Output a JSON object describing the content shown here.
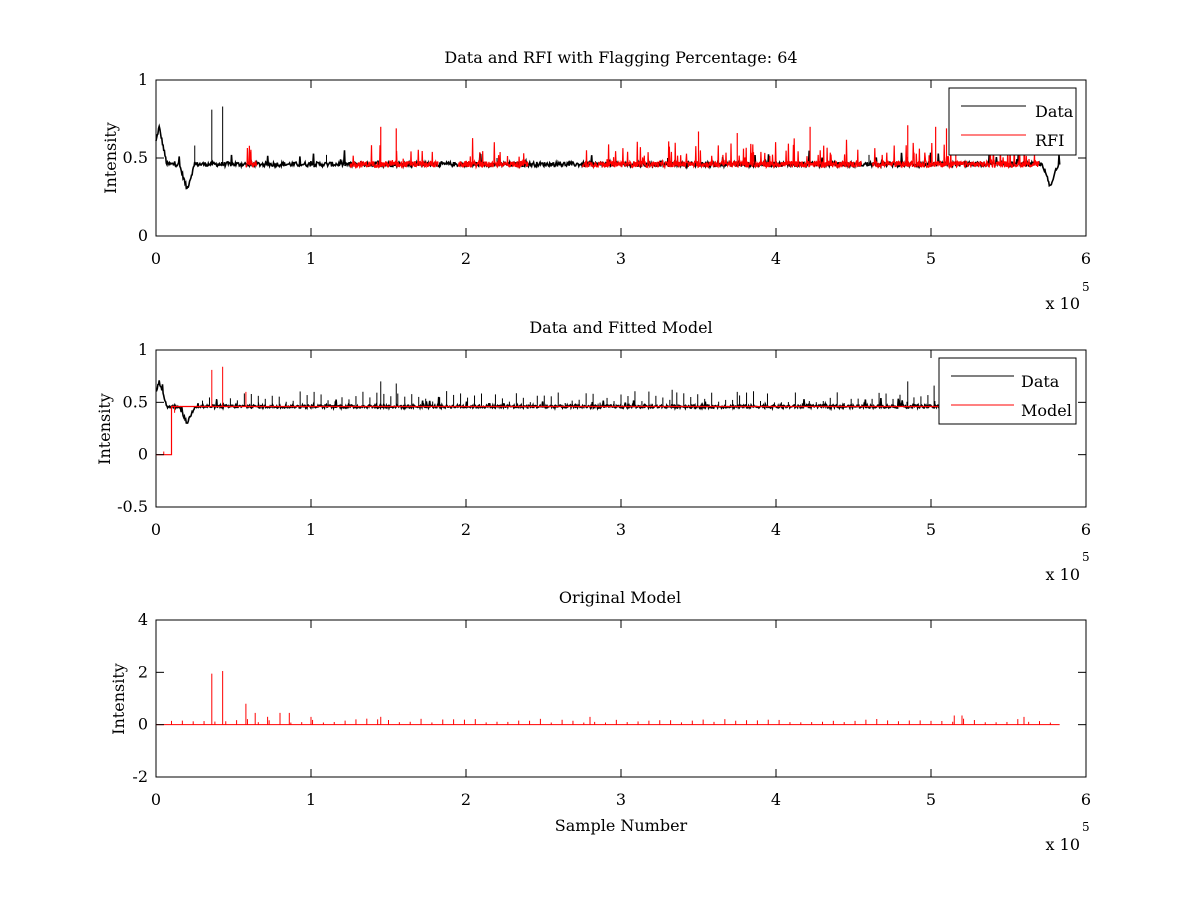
{
  "figure": {
    "background": "#ffffff"
  },
  "chart_data": [
    {
      "type": "line",
      "title": "Data and RFI with Flagging Percentage: 64",
      "xlabel": "",
      "ylabel": "Intensity",
      "xlim": [
        0,
        6
      ],
      "ylim": [
        0,
        1
      ],
      "xticks": [
        "0",
        "1",
        "2",
        "3",
        "4",
        "5",
        "6"
      ],
      "yticks": [
        "0",
        "0.5",
        "1"
      ],
      "x_exponent": {
        "base": "x 10",
        "exp": "5"
      },
      "legend_position": "top-right",
      "series": [
        {
          "name": "Data",
          "color": "#000000",
          "baseline": 0.46,
          "dips": [
            [
              0.02,
              0.7
            ],
            [
              0.2,
              0.3
            ],
            [
              5.77,
              0.31
            ]
          ],
          "spikes": [
            [
              0.36,
              0.81
            ],
            [
              0.43,
              0.83
            ],
            [
              0.25,
              0.58
            ],
            [
              1.1,
              0.52
            ],
            [
              2.2,
              0.5
            ],
            [
              3.3,
              0.5
            ],
            [
              4.6,
              0.52
            ]
          ]
        },
        {
          "name": "RFI",
          "color": "#ff0000",
          "baseline": 0.46,
          "segments": [
            [
              0.58,
              0.65
            ],
            [
              1.25,
              1.82
            ],
            [
              1.95,
              2.4
            ],
            [
              2.75,
              4.55
            ],
            [
              4.62,
              5.7
            ]
          ],
          "spikes": [
            [
              1.45,
              0.7
            ],
            [
              1.55,
              0.69
            ],
            [
              3.5,
              0.67
            ],
            [
              3.75,
              0.66
            ],
            [
              4.22,
              0.7
            ],
            [
              4.85,
              0.71
            ],
            [
              5.03,
              0.7
            ],
            [
              5.1,
              0.69
            ],
            [
              5.16,
              0.67
            ],
            [
              5.6,
              0.65
            ]
          ]
        }
      ]
    },
    {
      "type": "line",
      "title": "Data and Fitted Model",
      "xlabel": "",
      "ylabel": "Intensity",
      "xlim": [
        0,
        6
      ],
      "ylim": [
        -0.5,
        1
      ],
      "xticks": [
        "0",
        "1",
        "2",
        "3",
        "4",
        "5",
        "6"
      ],
      "yticks": [
        "-0.5",
        "0",
        "0.5",
        "1"
      ],
      "x_exponent": {
        "base": "x 10",
        "exp": "5"
      },
      "legend_position": "top-right",
      "series": [
        {
          "name": "Data",
          "color": "#000000",
          "baseline": 0.46,
          "dips": [
            [
              0.02,
              0.7
            ],
            [
              0.2,
              0.3
            ]
          ],
          "spikes": [
            [
              1.45,
              0.7
            ],
            [
              1.55,
              0.68
            ],
            [
              3.33,
              0.62
            ],
            [
              3.75,
              0.6
            ],
            [
              4.85,
              0.7
            ],
            [
              5.02,
              0.66
            ]
          ]
        },
        {
          "name": "Model",
          "color": "#ff0000",
          "baseline": 0.46,
          "step": [
            [
              0,
              0
            ],
            [
              0.1,
              0
            ],
            [
              0.1,
              0.46
            ]
          ],
          "spikes": [
            [
              0.36,
              0.81
            ],
            [
              0.43,
              0.84
            ],
            [
              0.58,
              0.6
            ],
            [
              0.05,
              0.03
            ],
            [
              0.12,
              0.4
            ]
          ]
        }
      ]
    },
    {
      "type": "line",
      "title": "Original Model",
      "xlabel": "Sample Number",
      "ylabel": "Intensity",
      "xlim": [
        0,
        6
      ],
      "ylim": [
        -2,
        4
      ],
      "xticks": [
        "0",
        "1",
        "2",
        "3",
        "4",
        "5",
        "6"
      ],
      "yticks": [
        "-2",
        "0",
        "2",
        "4"
      ],
      "x_exponent": {
        "base": "x 10",
        "exp": "5"
      },
      "series": [
        {
          "name": "Original Model",
          "color": "#ff0000",
          "baseline": 0,
          "x_end": 5.83,
          "spikes": [
            [
              0.36,
              1.95
            ],
            [
              0.43,
              2.05
            ],
            [
              0.58,
              0.8
            ],
            [
              0.64,
              0.45
            ],
            [
              0.72,
              0.3
            ],
            [
              0.8,
              0.45
            ],
            [
              0.86,
              0.45
            ],
            [
              1.0,
              0.3
            ],
            [
              1.45,
              0.3
            ],
            [
              2.8,
              0.3
            ],
            [
              5.15,
              0.35
            ],
            [
              5.2,
              0.35
            ],
            [
              5.6,
              0.3
            ]
          ]
        }
      ]
    }
  ]
}
